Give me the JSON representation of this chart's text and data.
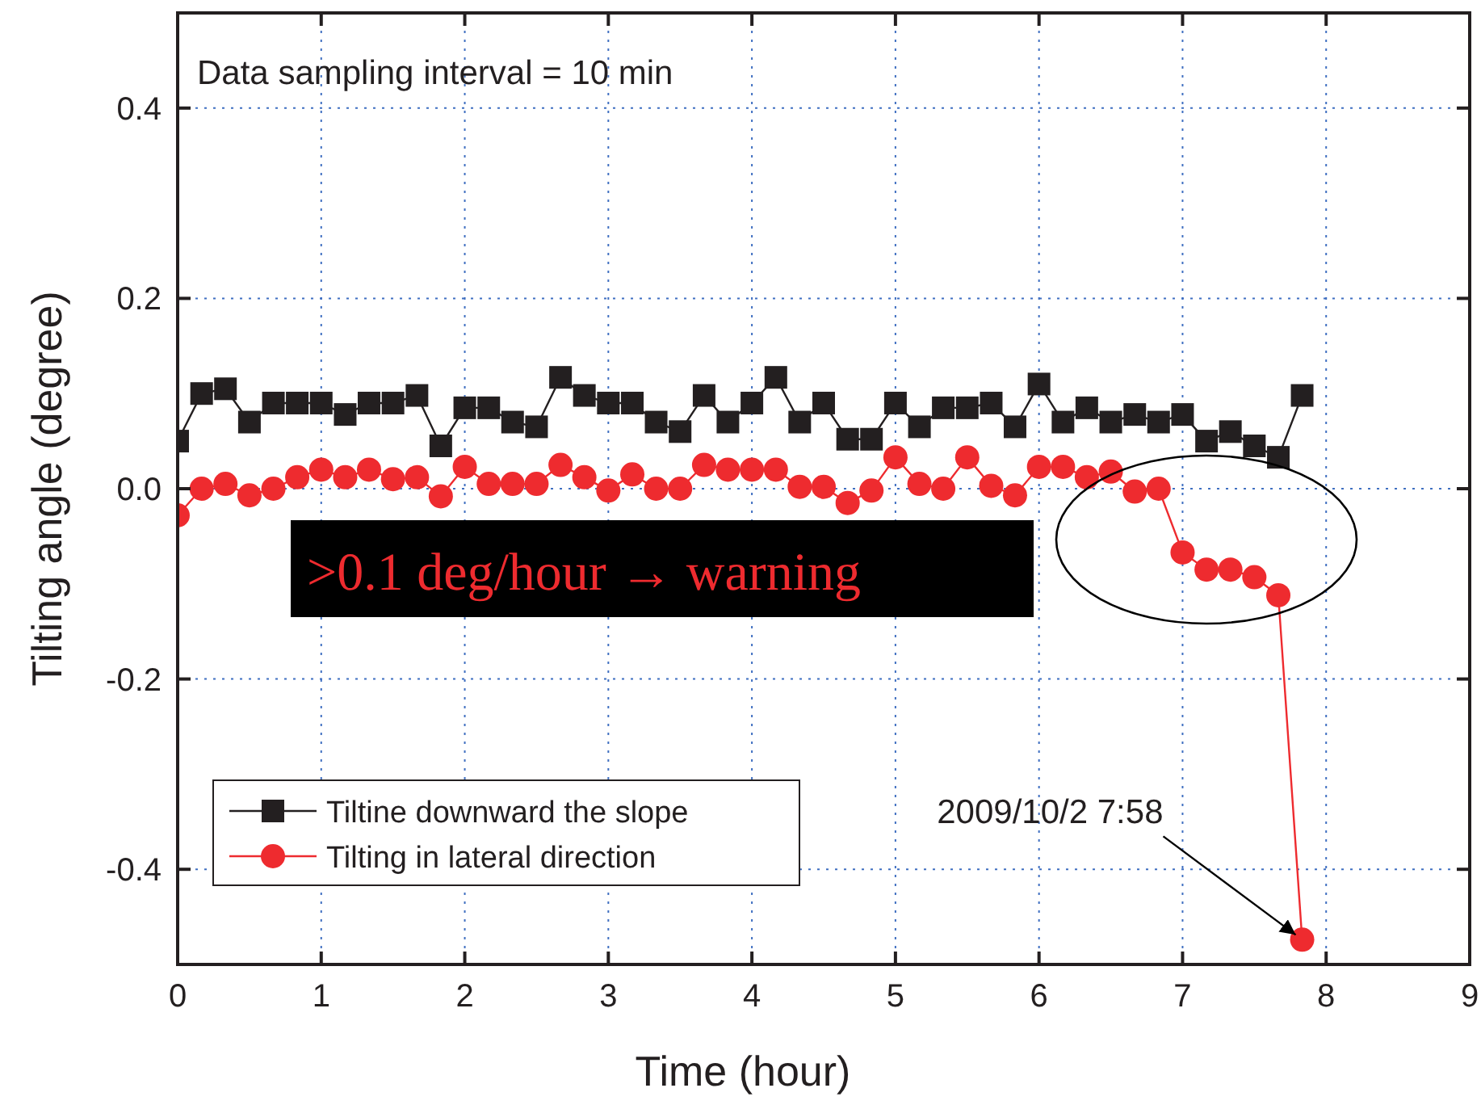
{
  "chart_data": {
    "type": "line",
    "xlabel": "Time (hour)",
    "ylabel": "Tilting angle (degree)",
    "x": [
      0,
      0.167,
      0.333,
      0.5,
      0.667,
      0.833,
      1,
      1.167,
      1.333,
      1.5,
      1.667,
      1.833,
      2,
      2.167,
      2.333,
      2.5,
      2.667,
      2.833,
      3,
      3.167,
      3.333,
      3.5,
      3.667,
      3.833,
      4,
      4.167,
      4.333,
      4.5,
      4.667,
      4.833,
      5,
      5.167,
      5.333,
      5.5,
      5.667,
      5.833,
      6,
      6.167,
      6.333,
      6.5,
      6.667,
      6.833,
      7,
      7.167,
      7.333,
      7.5,
      7.667,
      7.833
    ],
    "series": [
      {
        "name": "Tiltine downward the slope",
        "color": "#231f20",
        "marker": "square",
        "values": [
          0.05,
          0.1,
          0.105,
          0.07,
          0.09,
          0.09,
          0.09,
          0.078,
          0.09,
          0.09,
          0.098,
          0.045,
          0.085,
          0.085,
          0.07,
          0.065,
          0.117,
          0.098,
          0.09,
          0.09,
          0.07,
          0.06,
          0.098,
          0.07,
          0.09,
          0.117,
          0.07,
          0.09,
          0.052,
          0.052,
          0.09,
          0.065,
          0.085,
          0.085,
          0.09,
          0.065,
          0.11,
          0.07,
          0.085,
          0.07,
          0.078,
          0.07,
          0.078,
          0.05,
          0.06,
          0.045,
          0.033,
          0.098
        ]
      },
      {
        "name": "Tilting in lateral direction",
        "color": "#ee2b2f",
        "marker": "circle",
        "values": [
          -0.028,
          0,
          0.005,
          -0.007,
          0,
          0.012,
          0.02,
          0.012,
          0.02,
          0.01,
          0.012,
          -0.008,
          0.023,
          0.005,
          0.005,
          0.005,
          0.025,
          0.012,
          -0.002,
          0.015,
          0,
          0,
          0.025,
          0.02,
          0.02,
          0.02,
          0.002,
          0.002,
          -0.015,
          -0.002,
          0.033,
          0.005,
          0,
          0.033,
          0.003,
          -0.007,
          0.023,
          0.023,
          0.012,
          0.018,
          -0.003,
          0,
          -0.067,
          -0.085,
          -0.085,
          -0.093,
          -0.112,
          -0.474
        ]
      }
    ],
    "xlim": [
      0,
      9
    ],
    "xticks": [
      0,
      1,
      2,
      3,
      4,
      5,
      6,
      7,
      8,
      9
    ],
    "ylim": [
      -0.5,
      0.5
    ],
    "yticks": [
      {
        "value": -0.4,
        "label": "-0.4"
      },
      {
        "value": -0.2,
        "label": "-0.2"
      },
      {
        "value": 0,
        "label": "0.0"
      },
      {
        "value": 0.2,
        "label": "0.2"
      },
      {
        "value": 0.4,
        "label": "0.4"
      }
    ],
    "grid": true,
    "legend": "bottom left",
    "line_style": "solid",
    "annotations": [
      "Data sampling interval = 10 min",
      ">0.1 deg/hour → warning",
      {
        "text": "2009/10/2 7:58",
        "x": 7.833,
        "y": -0.474
      }
    ]
  }
}
